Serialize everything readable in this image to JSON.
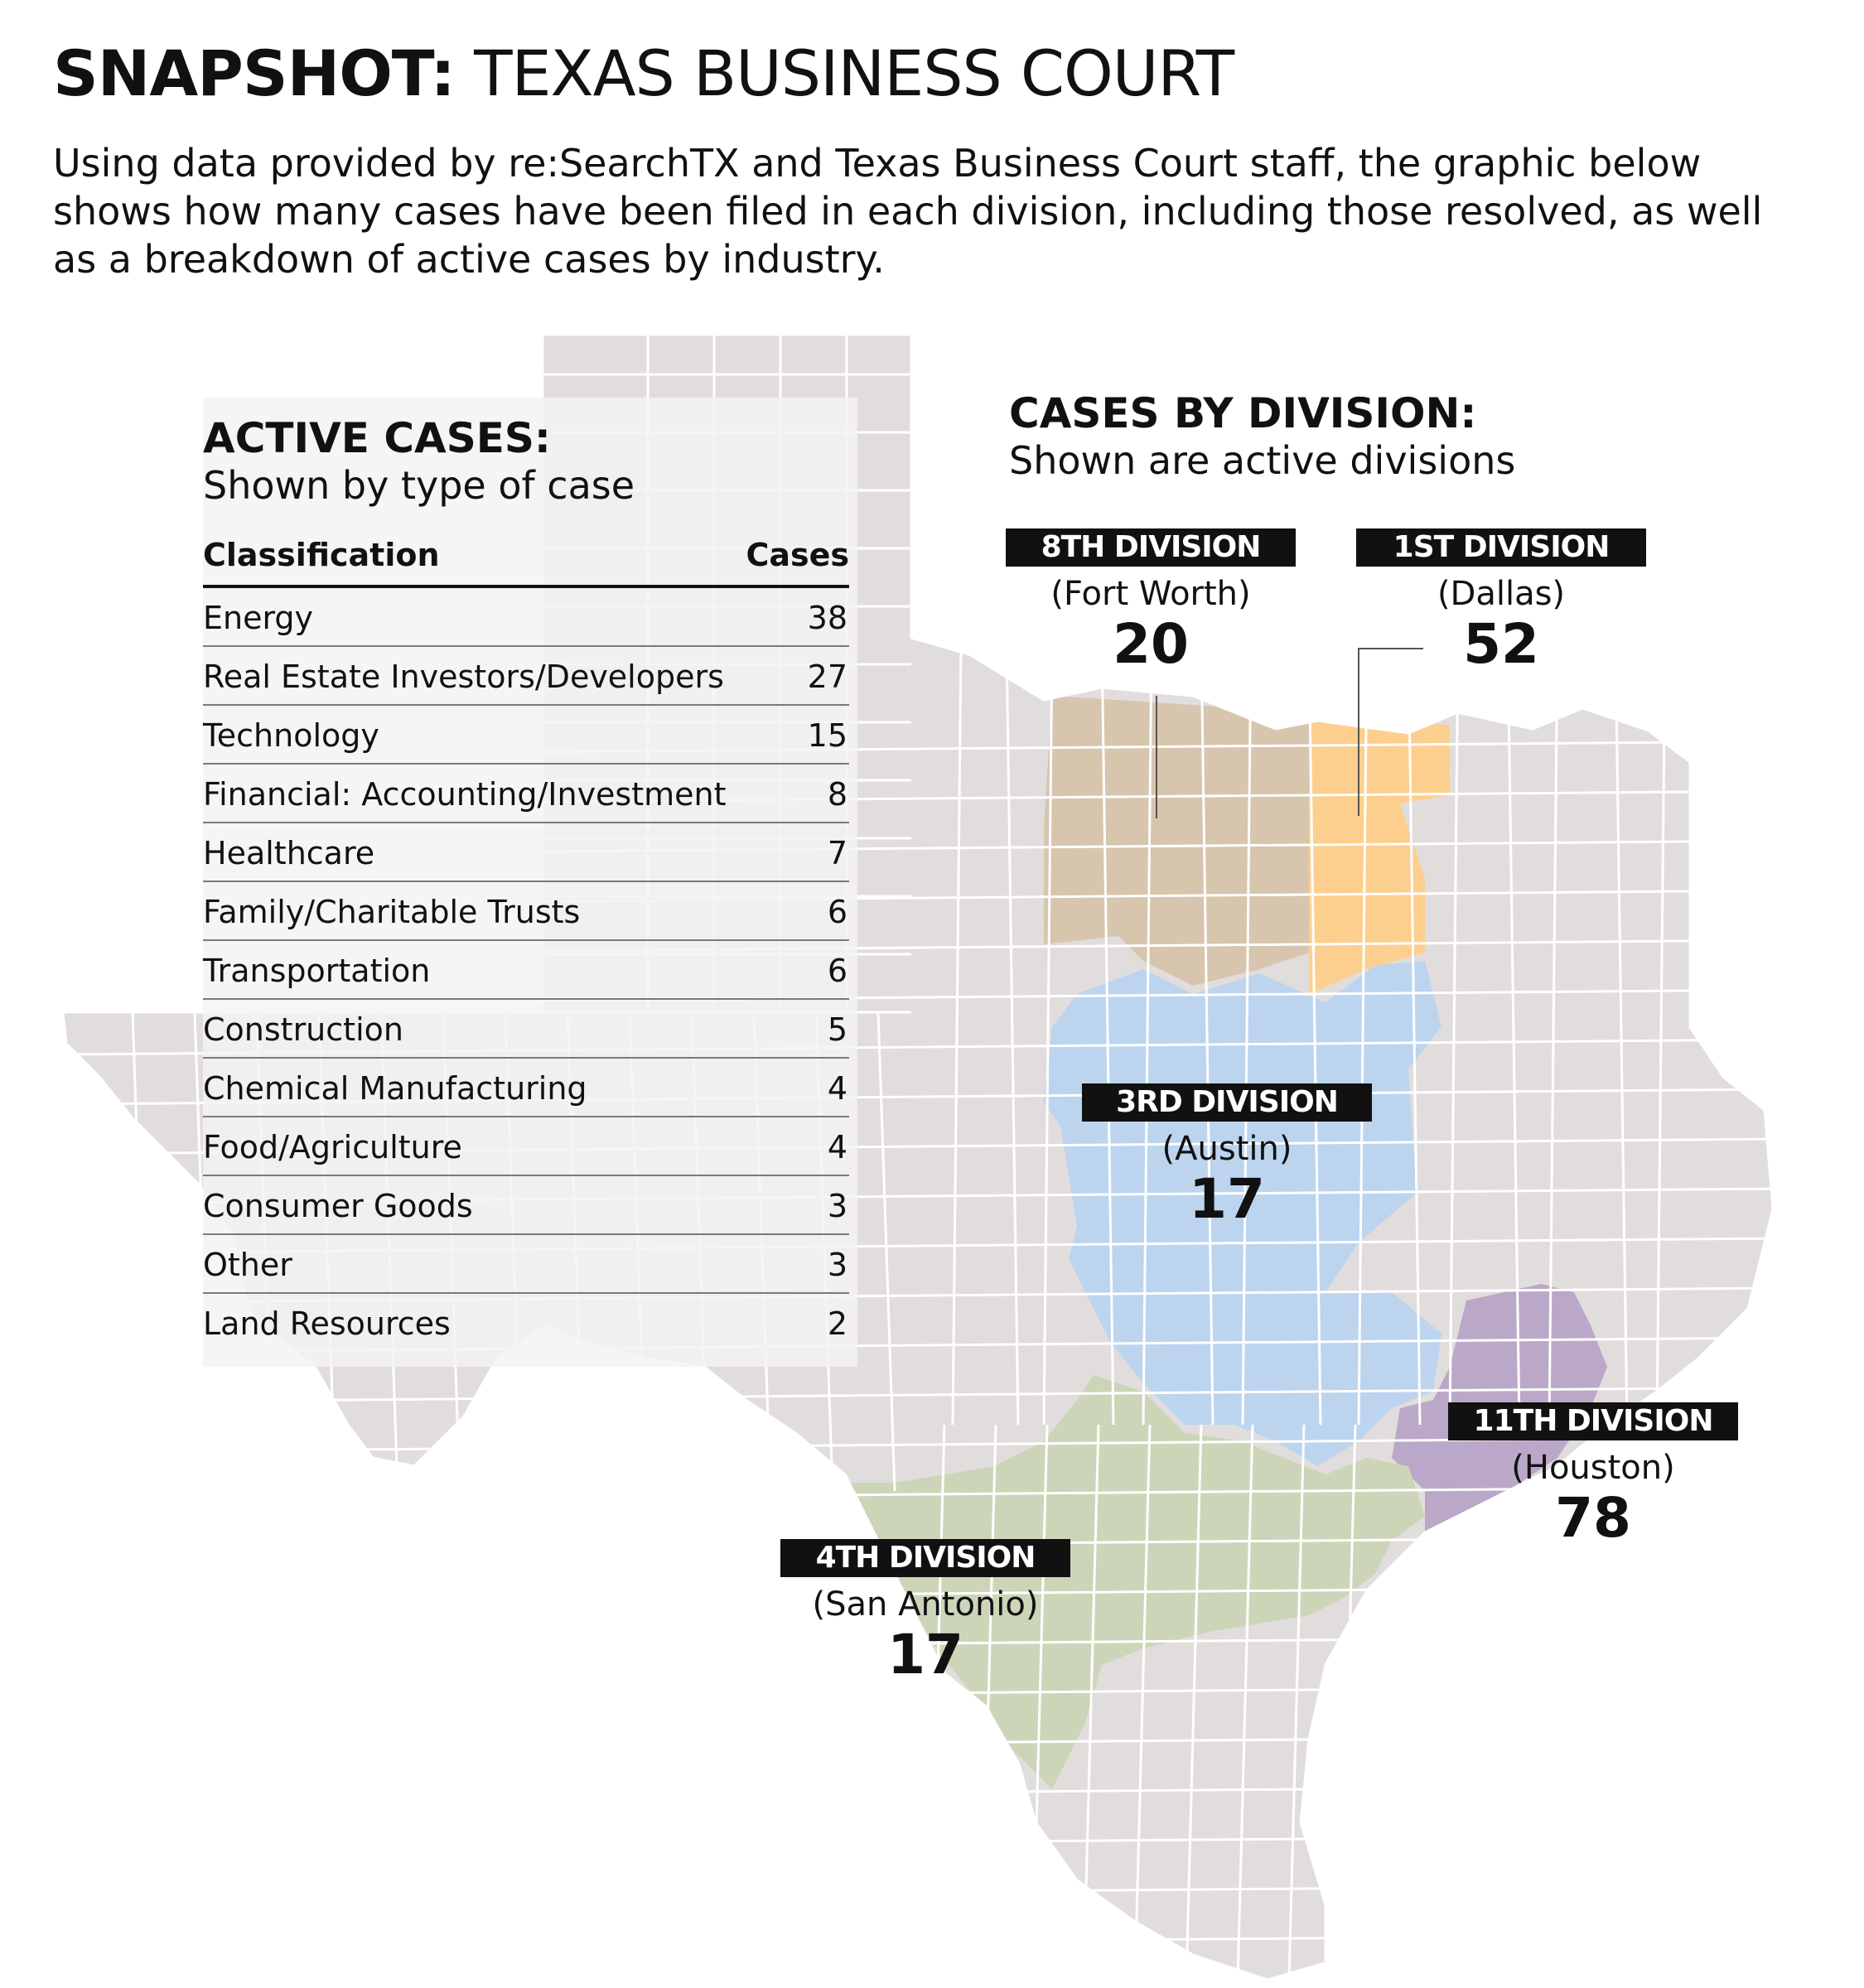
{
  "header": {
    "title_bold": "SNAPSHOT:",
    "title_rest": "TEXAS BUSINESS COURT",
    "intro": "Using data provided by re:SearchTX and Texas Business Court staff, the graphic below shows how many cases have been filed in each division, including those resolved, as well as a breakdown of active cases by industry."
  },
  "active_cases": {
    "title": "ACTIVE CASES:",
    "subtitle": "Shown by type of case",
    "col_classification": "Classification",
    "col_cases": "Cases",
    "rows": [
      {
        "label": "Energy",
        "count": "38"
      },
      {
        "label": "Real Estate Investors/Developers",
        "count": "27"
      },
      {
        "label": "Technology",
        "count": "15"
      },
      {
        "label": "Financial: Accounting/Investment",
        "count": "8"
      },
      {
        "label": "Healthcare",
        "count": "7"
      },
      {
        "label": "Family/Charitable Trusts",
        "count": "6"
      },
      {
        "label": "Transportation",
        "count": "6"
      },
      {
        "label": "Construction",
        "count": "5"
      },
      {
        "label": "Chemical Manufacturing",
        "count": "4"
      },
      {
        "label": "Food/Agriculture",
        "count": "4"
      },
      {
        "label": "Consumer Goods",
        "count": "3"
      },
      {
        "label": "Other",
        "count": "3"
      },
      {
        "label": "Land Resources",
        "count": "2"
      }
    ]
  },
  "divisions": {
    "title": "CASES BY DIVISION:",
    "subtitle": "Shown are active divisions",
    "items": [
      {
        "id": "8th",
        "name": "8TH DIVISION",
        "city": "(Fort Worth)",
        "cases": "20",
        "color": "#d7c5ad"
      },
      {
        "id": "1st",
        "name": "1ST DIVISION",
        "city": "(Dallas)",
        "cases": "52",
        "color": "#fdcf8e"
      },
      {
        "id": "3rd",
        "name": "3RD DIVISION",
        "city": "(Austin)",
        "cases": "17",
        "color": "#bcd4ee"
      },
      {
        "id": "11th",
        "name": "11TH DIVISION",
        "city": "(Houston)",
        "cases": "78",
        "color": "#bba8c8"
      },
      {
        "id": "4th",
        "name": "4TH DIVISION",
        "city": "(San Antonio)",
        "cases": "17",
        "color": "#cdd5b9"
      }
    ]
  },
  "colors": {
    "state_fill": "#e1dddc",
    "county_border": "#ffffff",
    "panel_bg": "#f4f3f3",
    "label_bg": "#111111"
  }
}
